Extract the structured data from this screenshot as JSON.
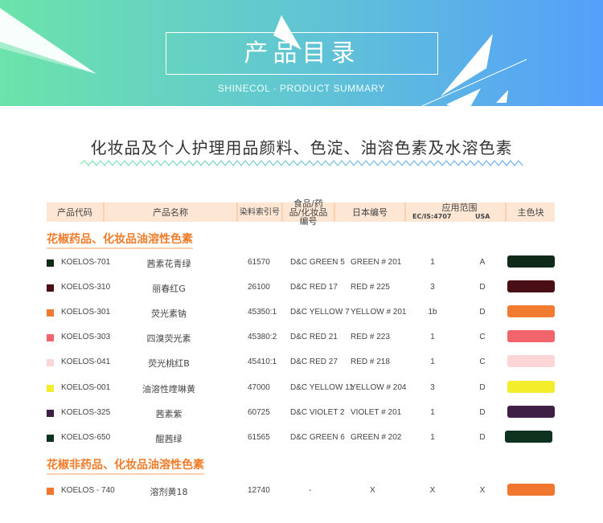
{
  "banner": {
    "title": "产品目录",
    "subtitle": "SHINECOL · PRODUCT SUMMARY"
  },
  "heading": "化妆品及个人护理用品颜料、色淀、油溶色素及水溶色素",
  "table": {
    "headers": {
      "code": "产品代码",
      "name": "产品名称",
      "ci": "染料索引号",
      "food": "食品/药品/化妆品编号",
      "japan": "日本编号",
      "range": "应用范围",
      "ec": "EC/IS:4707",
      "usa": "USA",
      "color": "主色块"
    },
    "sections": [
      {
        "title": "花椒药品、化妆品油溶性色素",
        "rows": [
          {
            "code": "KOELOS-701",
            "name": "茜素花青绿",
            "ci": "61570",
            "food": "D&C GREEN 5",
            "japan": "GREEN # 201",
            "ec": "1",
            "usa": "A",
            "color": "#0f2a18"
          },
          {
            "code": "KOELOS-310",
            "name": "丽春红G",
            "ci": "26100",
            "food": "D&C RED 17",
            "japan": "RED # 225",
            "ec": "3",
            "usa": "D",
            "color": "#4a0e16"
          },
          {
            "code": "KOELOS-301",
            "name": "荧光素钠",
            "ci": "45350:1",
            "food": "D&C YELLOW 7",
            "japan": "YELLOW # 201",
            "ec": "1b",
            "usa": "D",
            "color": "#f27b32"
          },
          {
            "code": "KOELOS-303",
            "name": "四溴荧光素",
            "ci": "45380:2",
            "food": "D&C RED 21",
            "japan": "RED # 223",
            "ec": "1",
            "usa": "C",
            "color": "#f1646b"
          },
          {
            "code": "KOELOS-041",
            "name": "荧光桃红B",
            "ci": "45410:1",
            "food": "D&C RED 27",
            "japan": "RED # 218",
            "ec": "1",
            "usa": "C",
            "color": "#fcd6d6"
          },
          {
            "code": "KOELOS-001",
            "name": "油溶性喹啉黄",
            "ci": "47000",
            "food": "D&C YELLOW 11",
            "japan": "YELLOW # 204",
            "ec": "3",
            "usa": "D",
            "color": "#f3ee2c"
          },
          {
            "code": "KOELOS-325",
            "name": "茜素紫",
            "ci": "60725",
            "food": "D&C VIOLET 2",
            "japan": "VIOLET # 201",
            "ec": "1",
            "usa": "D",
            "color": "#3f1f46"
          },
          {
            "code": "KOELOS-650",
            "name": "醌茜绿",
            "ci": "61565",
            "food": "D&C GREEN 6",
            "japan": "GREEN # 202",
            "ec": "1",
            "usa": "D",
            "color": "#0d3320"
          }
        ]
      },
      {
        "title": "花椒非药品、化妆品油溶性色素",
        "rows": [
          {
            "code": "KOELOS - 740",
            "name": "溶剂黄18",
            "ci": "12740",
            "food": "-",
            "japan": "X",
            "ec": "X",
            "usa": "X",
            "color": "#f2772e"
          }
        ]
      }
    ]
  }
}
